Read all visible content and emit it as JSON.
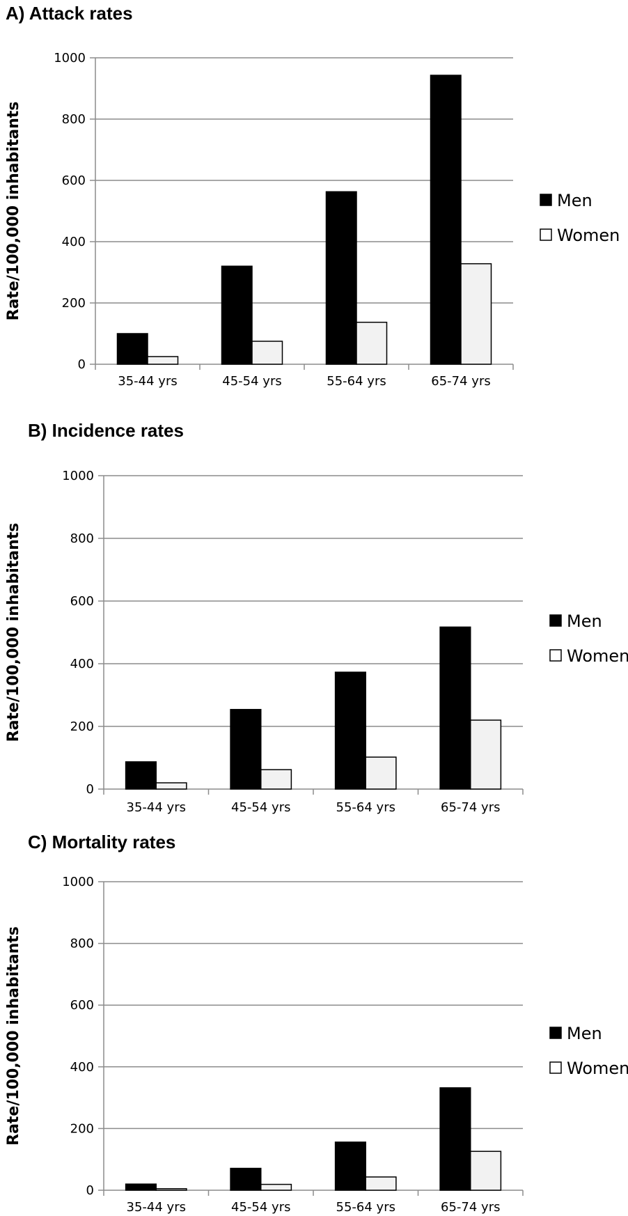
{
  "chart_data": [
    {
      "type": "bar",
      "title": "A) Attack rates",
      "ylabel": "Rate/100,000 inhabitants",
      "xlabel": "",
      "categories": [
        "35-44 yrs",
        "45-54 yrs",
        "55-64 yrs",
        "65-74 yrs"
      ],
      "series": [
        {
          "name": "Men",
          "color": "#000000",
          "values": [
            100,
            320,
            563,
            943
          ]
        },
        {
          "name": "Women",
          "color": "#f2f2f2",
          "values": [
            25,
            75,
            137,
            328
          ]
        }
      ],
      "ylim": [
        0,
        1000
      ],
      "yticks": [
        0,
        200,
        400,
        600,
        800,
        1000
      ],
      "grid": true,
      "legend": "right"
    },
    {
      "type": "bar",
      "title": "B) Incidence rates",
      "ylabel": "Rate/100,000 inhabitants",
      "xlabel": "",
      "categories": [
        "35-44 yrs",
        "45-54 yrs",
        "55-64 yrs",
        "65-74 yrs"
      ],
      "series": [
        {
          "name": "Men",
          "color": "#000000",
          "values": [
            87,
            254,
            373,
            517
          ]
        },
        {
          "name": "Women",
          "color": "#f2f2f2",
          "values": [
            20,
            62,
            102,
            220
          ]
        }
      ],
      "ylim": [
        0,
        1000
      ],
      "yticks": [
        0,
        200,
        400,
        600,
        800,
        1000
      ],
      "grid": true,
      "legend": "right"
    },
    {
      "type": "bar",
      "title": "C) Mortality rates",
      "ylabel": "Rate/100,000 inhabitants",
      "xlabel": "",
      "categories": [
        "35-44 yrs",
        "45-54 yrs",
        "55-64 yrs",
        "65-74 yrs"
      ],
      "series": [
        {
          "name": "Men",
          "color": "#000000",
          "values": [
            20,
            71,
            156,
            332
          ]
        },
        {
          "name": "Women",
          "color": "#f2f2f2",
          "values": [
            5,
            19,
            43,
            126
          ]
        }
      ],
      "ylim": [
        0,
        1000
      ],
      "yticks": [
        0,
        200,
        400,
        600,
        800,
        1000
      ],
      "grid": true,
      "legend": "right"
    }
  ]
}
